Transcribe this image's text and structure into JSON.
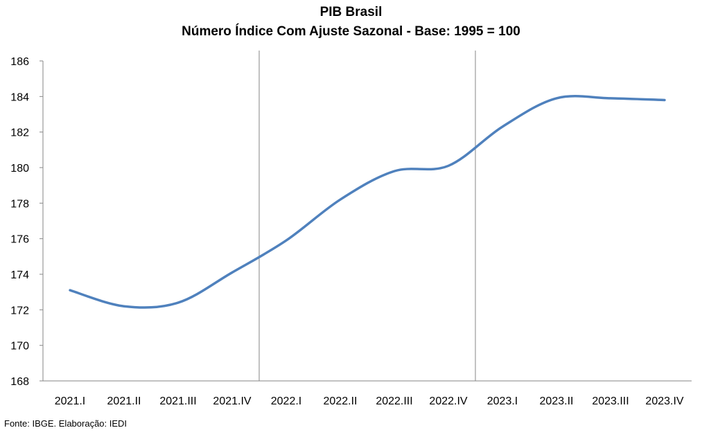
{
  "chart_data": {
    "type": "line",
    "title": "PIB Brasil",
    "subtitle": "Número Índice Com Ajuste Sazonal - Base: 1995 = 100",
    "categories": [
      "2021.I",
      "2021.II",
      "2021.III",
      "2021.IV",
      "2022.I",
      "2022.II",
      "2022.III",
      "2022.IV",
      "2023.I",
      "2023.II",
      "2023.III",
      "2023.IV"
    ],
    "series": [
      {
        "values": [
          173.1,
          172.2,
          172.4,
          174.1,
          175.9,
          178.2,
          179.8,
          180.1,
          182.3,
          183.9,
          183.9,
          183.8
        ]
      }
    ],
    "ylim": [
      168,
      186
    ],
    "yticks": [
      168,
      170,
      172,
      174,
      176,
      178,
      180,
      182,
      184,
      186
    ],
    "gridlines": false,
    "line_color": "#4F81BD"
  },
  "source": "Fonte: IBGE. Elaboração: IEDI"
}
